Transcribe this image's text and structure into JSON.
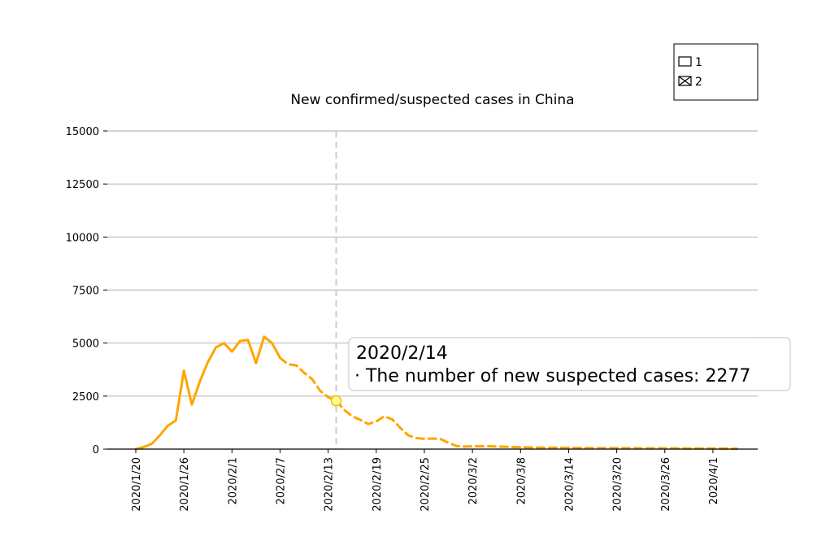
{
  "chart_data": {
    "type": "line",
    "title": "New confirmed/suspected cases in China",
    "xlabel": "",
    "ylabel": "",
    "ylim": [
      0,
      15000
    ],
    "yticks": [
      0,
      2500,
      5000,
      7500,
      10000,
      12500,
      15000
    ],
    "xticks": [
      "2020/1/20",
      "2020/1/26",
      "2020/2/1",
      "2020/2/7",
      "2020/2/13",
      "2020/2/19",
      "2020/2/25",
      "2020/3/2",
      "2020/3/8",
      "2020/3/14",
      "2020/3/20",
      "2020/3/26",
      "2020/4/1"
    ],
    "grid": "horizontal",
    "legend": {
      "position": "top-right",
      "entries": [
        {
          "label": "1",
          "marker": "empty-box"
        },
        {
          "label": "2",
          "marker": "crossed-box"
        }
      ]
    },
    "colors": {
      "line": "#FFA500",
      "grid": "#bbbbbb",
      "crosshair": "#cccccc",
      "highlight": "#FFFF80"
    },
    "series": [
      {
        "style": "solid",
        "x": [
          "2020/1/20",
          "2020/1/21",
          "2020/1/22",
          "2020/1/23",
          "2020/1/24",
          "2020/1/25",
          "2020/1/26",
          "2020/1/27",
          "2020/1/28",
          "2020/1/29",
          "2020/1/30",
          "2020/1/31",
          "2020/2/1",
          "2020/2/2",
          "2020/2/3",
          "2020/2/4",
          "2020/2/5",
          "2020/2/6",
          "2020/2/7"
        ],
        "values": [
          0,
          100,
          250,
          650,
          1100,
          1350,
          3700,
          2100,
          3200,
          4100,
          4800,
          5000,
          4600,
          5100,
          5150,
          4050,
          5300,
          5000,
          4300
        ]
      },
      {
        "style": "dashed",
        "x": [
          "2020/2/7",
          "2020/2/8",
          "2020/2/9",
          "2020/2/10",
          "2020/2/11",
          "2020/2/12",
          "2020/2/13",
          "2020/2/14",
          "2020/2/15",
          "2020/2/16",
          "2020/2/17",
          "2020/2/18",
          "2020/2/19",
          "2020/2/20",
          "2020/2/21",
          "2020/2/22",
          "2020/2/23",
          "2020/2/24",
          "2020/2/25",
          "2020/2/26",
          "2020/2/27",
          "2020/2/28",
          "2020/2/29",
          "2020/3/1",
          "2020/3/2",
          "2020/3/4",
          "2020/3/6",
          "2020/3/8",
          "2020/3/11",
          "2020/3/14",
          "2020/3/17",
          "2020/3/20",
          "2020/3/23",
          "2020/3/26",
          "2020/3/29",
          "2020/4/1",
          "2020/4/4"
        ],
        "values": [
          4300,
          4000,
          3950,
          3600,
          3300,
          2750,
          2450,
          2277,
          1850,
          1550,
          1380,
          1180,
          1300,
          1550,
          1400,
          1000,
          650,
          520,
          480,
          500,
          480,
          300,
          150,
          120,
          130,
          140,
          110,
          90,
          70,
          60,
          50,
          50,
          40,
          40,
          30,
          30,
          20
        ]
      }
    ],
    "highlight": {
      "date": "2020/2/14",
      "value": 2277
    },
    "tooltip": {
      "date": "2020/2/14",
      "text": "· The number of new suspected cases: 2277"
    }
  }
}
